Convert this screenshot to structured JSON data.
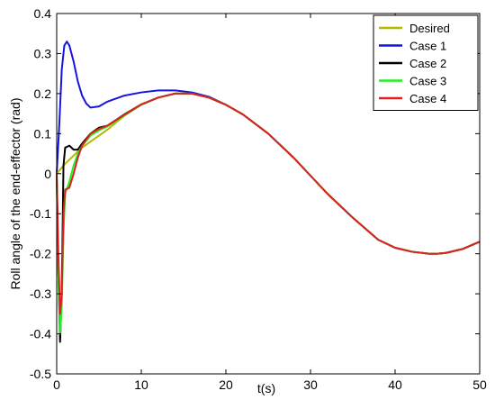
{
  "chart_data": {
    "type": "line",
    "title": "",
    "xlabel": "t(s)",
    "ylabel": "Roll angle of the end-effector (rad)",
    "xlim": [
      0,
      50
    ],
    "ylim": [
      -0.5,
      0.4
    ],
    "xticks": [
      0,
      10,
      20,
      30,
      40,
      50
    ],
    "yticks": [
      -0.5,
      -0.4,
      -0.3,
      -0.2,
      -0.1,
      0,
      0.1,
      0.2,
      0.3,
      0.4
    ],
    "grid": false,
    "legend_position": "top-right",
    "series": [
      {
        "name": "Desired",
        "color": "#b5b800",
        "x": [
          0,
          1,
          2,
          3,
          4,
          6,
          8,
          10,
          12,
          14,
          16,
          18,
          20,
          22,
          25,
          28,
          30,
          32,
          35,
          38,
          40,
          42,
          44,
          45,
          46,
          48,
          50
        ],
        "y": [
          0,
          0.025,
          0.045,
          0.065,
          0.08,
          0.11,
          0.145,
          0.172,
          0.19,
          0.2,
          0.2,
          0.19,
          0.172,
          0.148,
          0.1,
          0.04,
          -0.005,
          -0.05,
          -0.11,
          -0.165,
          -0.185,
          -0.195,
          -0.2,
          -0.2,
          -0.198,
          -0.188,
          -0.17
        ]
      },
      {
        "name": "Case 1",
        "color": "#1515e0",
        "x": [
          0,
          0.3,
          0.6,
          0.9,
          1.2,
          1.5,
          2,
          2.5,
          3,
          3.5,
          4,
          5,
          6,
          8,
          10,
          12,
          14,
          16,
          18,
          20,
          22,
          25,
          28,
          30,
          32,
          35,
          38,
          40,
          42,
          44,
          45,
          46,
          48,
          50
        ],
        "y": [
          0,
          0.12,
          0.26,
          0.32,
          0.33,
          0.32,
          0.28,
          0.23,
          0.195,
          0.175,
          0.165,
          0.168,
          0.18,
          0.195,
          0.203,
          0.208,
          0.208,
          0.203,
          0.192,
          0.172,
          0.148,
          0.1,
          0.04,
          -0.005,
          -0.05,
          -0.11,
          -0.165,
          -0.185,
          -0.195,
          -0.2,
          -0.2,
          -0.198,
          -0.188,
          -0.17
        ]
      },
      {
        "name": "Case 2",
        "color": "#000000",
        "x": [
          0,
          0.2,
          0.4,
          0.6,
          0.8,
          1.0,
          1.5,
          2.0,
          2.5,
          3,
          4,
          5,
          6,
          8,
          10,
          12,
          14,
          16,
          18,
          20,
          22,
          25,
          28,
          30,
          32,
          35,
          38,
          40,
          42,
          44,
          45,
          46,
          48,
          50
        ],
        "y": [
          0,
          -0.25,
          -0.42,
          -0.3,
          0.02,
          0.065,
          0.07,
          0.06,
          0.06,
          0.075,
          0.1,
          0.115,
          0.12,
          0.148,
          0.173,
          0.19,
          0.2,
          0.2,
          0.19,
          0.172,
          0.148,
          0.1,
          0.04,
          -0.005,
          -0.05,
          -0.11,
          -0.165,
          -0.185,
          -0.195,
          -0.2,
          -0.2,
          -0.198,
          -0.188,
          -0.17
        ]
      },
      {
        "name": "Case 3",
        "color": "#22ee22",
        "x": [
          0,
          0.2,
          0.4,
          0.6,
          0.8,
          1.0,
          1.5,
          2.0,
          2.5,
          3,
          4,
          5,
          6,
          8,
          10,
          12,
          14,
          16,
          18,
          20,
          22,
          25,
          28,
          30,
          32,
          35,
          38,
          40,
          42,
          44,
          45,
          46,
          48,
          50
        ],
        "y": [
          0,
          -0.25,
          -0.4,
          -0.33,
          -0.15,
          -0.05,
          -0.02,
          0.02,
          0.05,
          0.07,
          0.095,
          0.108,
          0.118,
          0.145,
          0.172,
          0.19,
          0.2,
          0.2,
          0.19,
          0.172,
          0.148,
          0.1,
          0.04,
          -0.005,
          -0.05,
          -0.11,
          -0.165,
          -0.185,
          -0.195,
          -0.2,
          -0.2,
          -0.198,
          -0.188,
          -0.17
        ]
      },
      {
        "name": "Case 4",
        "color": "#e02020",
        "x": [
          0,
          0.2,
          0.4,
          0.6,
          0.8,
          1.0,
          1.5,
          2.0,
          2.5,
          3,
          4,
          5,
          6,
          8,
          10,
          12,
          14,
          16,
          18,
          20,
          22,
          25,
          28,
          30,
          32,
          35,
          38,
          40,
          42,
          44,
          45,
          46,
          48,
          50
        ],
        "y": [
          0,
          -0.2,
          -0.35,
          -0.3,
          -0.1,
          -0.04,
          -0.035,
          0.0,
          0.04,
          0.07,
          0.1,
          0.112,
          0.12,
          0.147,
          0.173,
          0.19,
          0.2,
          0.2,
          0.19,
          0.172,
          0.148,
          0.1,
          0.04,
          -0.005,
          -0.05,
          -0.11,
          -0.165,
          -0.185,
          -0.195,
          -0.2,
          -0.2,
          -0.198,
          -0.188,
          -0.17
        ]
      }
    ]
  }
}
